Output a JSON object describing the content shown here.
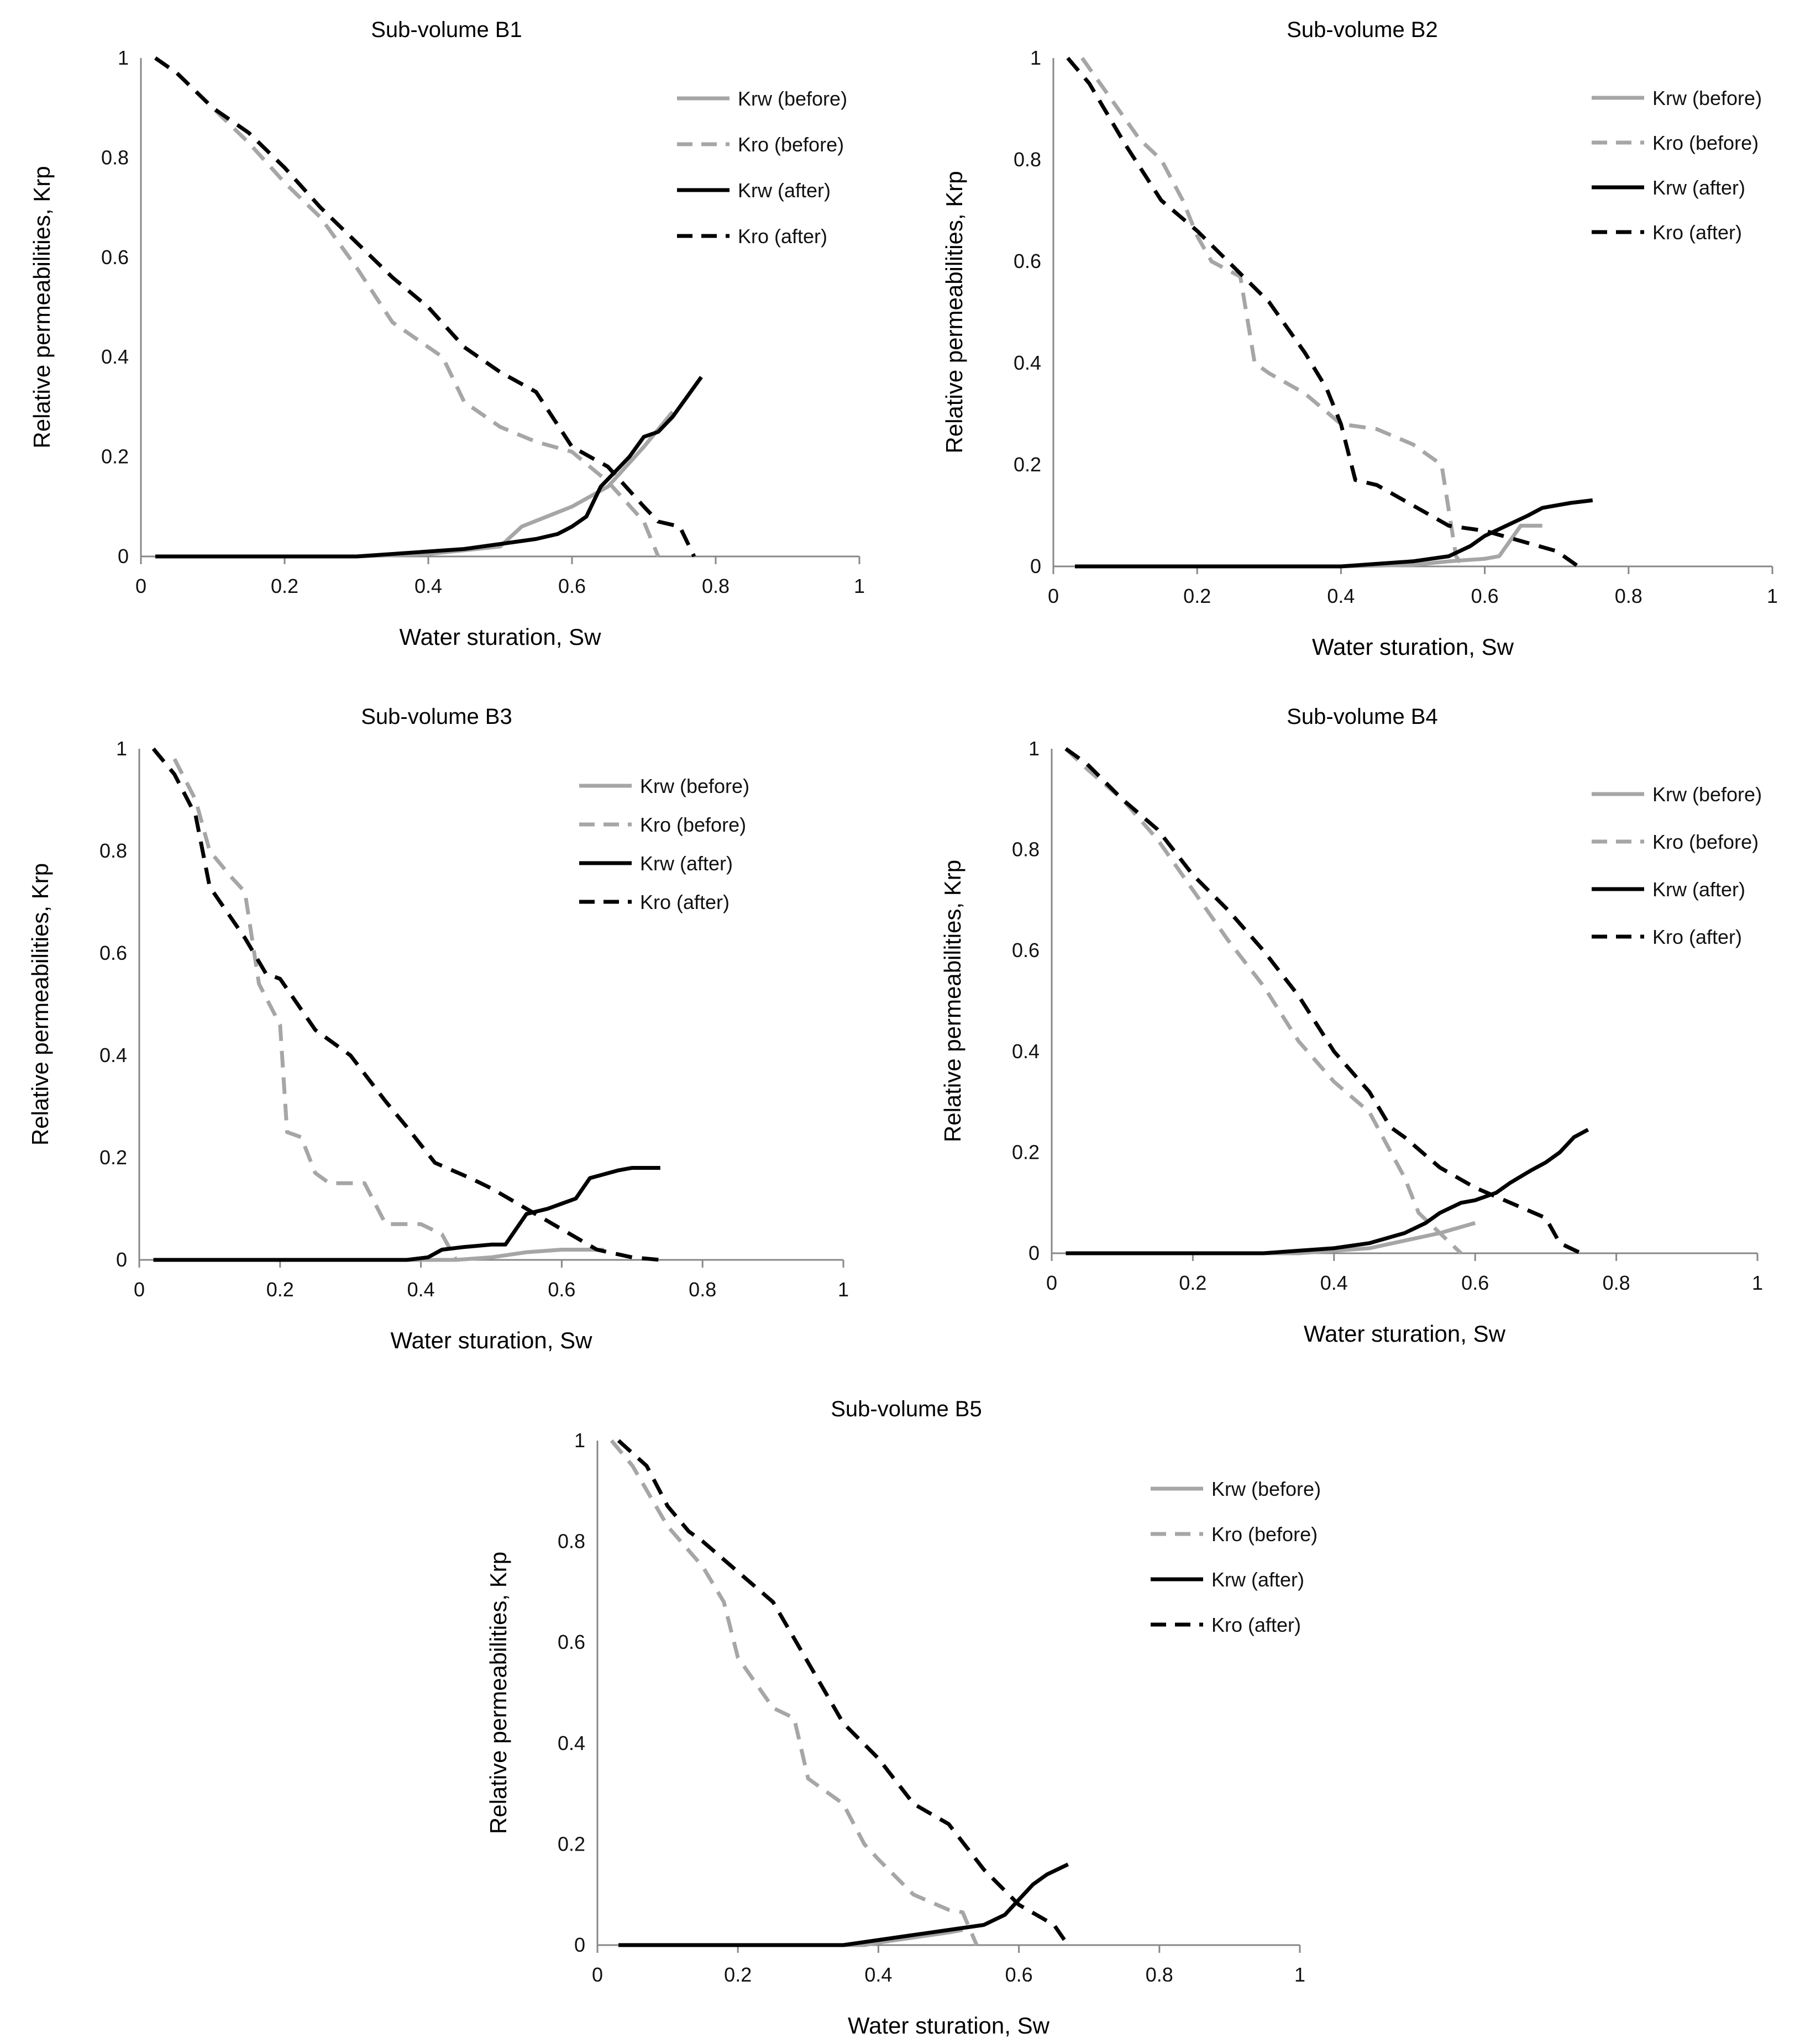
{
  "figure": {
    "series_styles": {
      "Krw (before)": {
        "color": "#a6a6a6",
        "dash": "solid"
      },
      "Kro (before)": {
        "color": "#a6a6a6",
        "dash": "dashed"
      },
      "Krw (after)": {
        "color": "#000000",
        "dash": "solid"
      },
      "Kro (after)": {
        "color": "#000000",
        "dash": "dashed"
      }
    }
  },
  "chart_data": [
    {
      "type": "line",
      "title": "Sub-volume B1",
      "xlabel": "Water sturation, Sw",
      "ylabel": "Relative permeabilities, Krp",
      "xlim": [
        0,
        1
      ],
      "ylim": [
        0,
        1
      ],
      "xticks": [
        "0",
        "0.2",
        "0.4",
        "0.6",
        "0.8",
        "1"
      ],
      "yticks": [
        "0",
        "0.2",
        "0.4",
        "0.6",
        "0.8",
        "1"
      ],
      "grid": false,
      "legend": "top-right",
      "series": [
        {
          "name": "Krw (before)",
          "x": [
            0.02,
            0.3,
            0.4,
            0.5,
            0.53,
            0.6,
            0.65,
            0.7,
            0.74
          ],
          "y": [
            0,
            0,
            0.005,
            0.02,
            0.06,
            0.1,
            0.14,
            0.22,
            0.29
          ]
        },
        {
          "name": "Kro (before)",
          "x": [
            0.02,
            0.05,
            0.1,
            0.15,
            0.2,
            0.25,
            0.3,
            0.35,
            0.4,
            0.42,
            0.45,
            0.5,
            0.55,
            0.6,
            0.65,
            0.7,
            0.72
          ],
          "y": [
            1,
            0.97,
            0.9,
            0.83,
            0.75,
            0.68,
            0.58,
            0.47,
            0.42,
            0.4,
            0.31,
            0.26,
            0.23,
            0.21,
            0.15,
            0.07,
            0
          ]
        },
        {
          "name": "Krw (after)",
          "x": [
            0.02,
            0.3,
            0.4,
            0.45,
            0.5,
            0.55,
            0.58,
            0.6,
            0.62,
            0.64,
            0.66,
            0.68,
            0.7,
            0.72,
            0.74,
            0.76,
            0.78
          ],
          "y": [
            0,
            0,
            0.01,
            0.015,
            0.025,
            0.035,
            0.045,
            0.06,
            0.08,
            0.14,
            0.17,
            0.2,
            0.24,
            0.25,
            0.28,
            0.32,
            0.36
          ]
        },
        {
          "name": "Kro (after)",
          "x": [
            0.02,
            0.05,
            0.1,
            0.15,
            0.2,
            0.25,
            0.3,
            0.35,
            0.4,
            0.45,
            0.5,
            0.55,
            0.6,
            0.65,
            0.7,
            0.72,
            0.75,
            0.77
          ],
          "y": [
            1,
            0.97,
            0.9,
            0.85,
            0.78,
            0.7,
            0.63,
            0.56,
            0.5,
            0.42,
            0.37,
            0.33,
            0.22,
            0.18,
            0.1,
            0.07,
            0.06,
            0
          ]
        }
      ]
    },
    {
      "type": "line",
      "title": "Sub-volume B2",
      "xlabel": "Water sturation, Sw",
      "ylabel": "Relative permeabilities, Krp",
      "xlim": [
        0,
        1
      ],
      "ylim": [
        0,
        1
      ],
      "xticks": [
        "0",
        "0.2",
        "0.4",
        "0.6",
        "0.8",
        "1"
      ],
      "yticks": [
        "0",
        "0.2",
        "0.4",
        "0.6",
        "0.8",
        "1"
      ],
      "grid": false,
      "legend": "top-right",
      "series": [
        {
          "name": "Krw (before)",
          "x": [
            0.03,
            0.4,
            0.5,
            0.55,
            0.6,
            0.62,
            0.65,
            0.68
          ],
          "y": [
            0,
            0,
            0.003,
            0.01,
            0.015,
            0.02,
            0.08,
            0.08
          ]
        },
        {
          "name": "Kro (before)",
          "x": [
            0.04,
            0.08,
            0.12,
            0.15,
            0.18,
            0.2,
            0.22,
            0.26,
            0.28,
            0.3,
            0.35,
            0.4,
            0.45,
            0.5,
            0.54,
            0.56,
            0.57
          ],
          "y": [
            1,
            0.92,
            0.84,
            0.8,
            0.72,
            0.65,
            0.6,
            0.57,
            0.4,
            0.38,
            0.34,
            0.28,
            0.27,
            0.24,
            0.2,
            0.02,
            0
          ]
        },
        {
          "name": "Krw (after)",
          "x": [
            0.03,
            0.4,
            0.45,
            0.5,
            0.55,
            0.58,
            0.6,
            0.63,
            0.66,
            0.68,
            0.7,
            0.72,
            0.75
          ],
          "y": [
            0,
            0,
            0.005,
            0.01,
            0.02,
            0.04,
            0.06,
            0.08,
            0.1,
            0.115,
            0.12,
            0.125,
            0.13
          ]
        },
        {
          "name": "Kro (after)",
          "x": [
            0.02,
            0.05,
            0.1,
            0.15,
            0.2,
            0.25,
            0.3,
            0.35,
            0.38,
            0.4,
            0.42,
            0.45,
            0.5,
            0.55,
            0.6,
            0.65,
            0.7,
            0.73
          ],
          "y": [
            1,
            0.95,
            0.83,
            0.72,
            0.66,
            0.59,
            0.52,
            0.42,
            0.35,
            0.28,
            0.17,
            0.16,
            0.12,
            0.08,
            0.07,
            0.05,
            0.03,
            0
          ]
        }
      ]
    },
    {
      "type": "line",
      "title": "Sub-volume B3",
      "xlabel": "Water sturation, Sw",
      "ylabel": "Relative permeabilities, Krp",
      "xlim": [
        0,
        1
      ],
      "ylim": [
        0,
        1
      ],
      "xticks": [
        "0",
        "0.2",
        "0.4",
        "0.6",
        "0.8",
        "1"
      ],
      "yticks": [
        "0",
        "0.2",
        "0.4",
        "0.6",
        "0.8",
        "1"
      ],
      "grid": false,
      "legend": "top-right",
      "series": [
        {
          "name": "Krw (before)",
          "x": [
            0.02,
            0.45,
            0.5,
            0.55,
            0.6,
            0.65,
            0.66
          ],
          "y": [
            0,
            0,
            0.005,
            0.015,
            0.02,
            0.02,
            0.02
          ]
        },
        {
          "name": "Kro (before)",
          "x": [
            0.05,
            0.08,
            0.1,
            0.13,
            0.15,
            0.17,
            0.2,
            0.21,
            0.23,
            0.25,
            0.27,
            0.3,
            0.32,
            0.35,
            0.4,
            0.43,
            0.45
          ],
          "y": [
            0.98,
            0.9,
            0.8,
            0.75,
            0.72,
            0.54,
            0.46,
            0.25,
            0.24,
            0.17,
            0.15,
            0.15,
            0.15,
            0.07,
            0.07,
            0.05,
            0
          ]
        },
        {
          "name": "Krw (after)",
          "x": [
            0.02,
            0.38,
            0.41,
            0.43,
            0.46,
            0.5,
            0.52,
            0.55,
            0.58,
            0.62,
            0.64,
            0.68,
            0.7,
            0.74
          ],
          "y": [
            0,
            0,
            0.005,
            0.02,
            0.025,
            0.03,
            0.03,
            0.09,
            0.1,
            0.12,
            0.16,
            0.175,
            0.18,
            0.18
          ]
        },
        {
          "name": "Kro (after)",
          "x": [
            0.02,
            0.05,
            0.08,
            0.1,
            0.15,
            0.18,
            0.2,
            0.25,
            0.3,
            0.35,
            0.38,
            0.42,
            0.47,
            0.5,
            0.55,
            0.6,
            0.65,
            0.7,
            0.74
          ],
          "y": [
            1,
            0.95,
            0.87,
            0.73,
            0.63,
            0.56,
            0.55,
            0.45,
            0.4,
            0.31,
            0.26,
            0.19,
            0.16,
            0.14,
            0.1,
            0.06,
            0.02,
            0.005,
            0
          ]
        }
      ]
    },
    {
      "type": "line",
      "title": "Sub-volume B4",
      "xlabel": "Water sturation, Sw",
      "ylabel": "Relative permeabilities, Krp",
      "xlim": [
        0,
        1
      ],
      "ylim": [
        0,
        1
      ],
      "xticks": [
        "0",
        "0.2",
        "0.4",
        "0.6",
        "0.8",
        "1"
      ],
      "yticks": [
        "0",
        "0.2",
        "0.4",
        "0.6",
        "0.8",
        "1"
      ],
      "grid": false,
      "legend": "top-right",
      "series": [
        {
          "name": "Krw (before)",
          "x": [
            0.02,
            0.35,
            0.4,
            0.45,
            0.5,
            0.55,
            0.6
          ],
          "y": [
            0,
            0,
            0.005,
            0.01,
            0.025,
            0.04,
            0.06
          ]
        },
        {
          "name": "Kro (before)",
          "x": [
            0.02,
            0.05,
            0.1,
            0.15,
            0.2,
            0.25,
            0.3,
            0.35,
            0.4,
            0.45,
            0.5,
            0.52,
            0.55,
            0.58
          ],
          "y": [
            1,
            0.96,
            0.9,
            0.82,
            0.72,
            0.62,
            0.53,
            0.42,
            0.34,
            0.28,
            0.15,
            0.08,
            0.04,
            0
          ]
        },
        {
          "name": "Krw (after)",
          "x": [
            0.02,
            0.3,
            0.35,
            0.4,
            0.45,
            0.5,
            0.53,
            0.55,
            0.58,
            0.6,
            0.63,
            0.65,
            0.68,
            0.7,
            0.72,
            0.74,
            0.76
          ],
          "y": [
            0,
            0,
            0.005,
            0.01,
            0.02,
            0.04,
            0.06,
            0.08,
            0.1,
            0.105,
            0.12,
            0.14,
            0.165,
            0.18,
            0.2,
            0.23,
            0.245
          ]
        },
        {
          "name": "Kro (after)",
          "x": [
            0.02,
            0.05,
            0.1,
            0.15,
            0.2,
            0.25,
            0.3,
            0.35,
            0.4,
            0.45,
            0.48,
            0.5,
            0.55,
            0.6,
            0.65,
            0.7,
            0.72,
            0.75
          ],
          "y": [
            1,
            0.97,
            0.9,
            0.84,
            0.75,
            0.68,
            0.6,
            0.51,
            0.4,
            0.32,
            0.25,
            0.23,
            0.17,
            0.13,
            0.1,
            0.07,
            0.02,
            0
          ]
        }
      ]
    },
    {
      "type": "line",
      "title": "Sub-volume B5",
      "xlabel": "Water sturation, Sw",
      "ylabel": "Relative permeabilities, Krp",
      "xlim": [
        0,
        1
      ],
      "ylim": [
        0,
        1
      ],
      "xticks": [
        "0",
        "0.2",
        "0.4",
        "0.6",
        "0.8",
        "1"
      ],
      "yticks": [
        "0",
        "0.2",
        "0.4",
        "0.6",
        "0.8",
        "1"
      ],
      "grid": false,
      "legend": "top-right",
      "series": [
        {
          "name": "Krw (before)",
          "x": [
            0.03,
            0.38,
            0.4,
            0.45,
            0.5,
            0.52
          ],
          "y": [
            0,
            0,
            0.005,
            0.015,
            0.025,
            0.03
          ]
        },
        {
          "name": "Kro (before)",
          "x": [
            0.02,
            0.05,
            0.1,
            0.15,
            0.18,
            0.2,
            0.25,
            0.28,
            0.3,
            0.35,
            0.38,
            0.4,
            0.45,
            0.5,
            0.52,
            0.54
          ],
          "y": [
            1,
            0.95,
            0.83,
            0.75,
            0.68,
            0.57,
            0.47,
            0.45,
            0.33,
            0.28,
            0.2,
            0.17,
            0.1,
            0.07,
            0.065,
            0
          ]
        },
        {
          "name": "Krw (after)",
          "x": [
            0.03,
            0.35,
            0.4,
            0.45,
            0.5,
            0.55,
            0.58,
            0.6,
            0.62,
            0.64,
            0.67
          ],
          "y": [
            0,
            0,
            0.01,
            0.02,
            0.03,
            0.04,
            0.06,
            0.09,
            0.12,
            0.14,
            0.16
          ]
        },
        {
          "name": "Kro (after)",
          "x": [
            0.03,
            0.07,
            0.1,
            0.13,
            0.15,
            0.2,
            0.25,
            0.3,
            0.35,
            0.4,
            0.45,
            0.5,
            0.55,
            0.6,
            0.65,
            0.67
          ],
          "y": [
            1,
            0.95,
            0.87,
            0.82,
            0.8,
            0.74,
            0.68,
            0.56,
            0.44,
            0.37,
            0.28,
            0.24,
            0.15,
            0.08,
            0.04,
            0
          ]
        }
      ]
    }
  ]
}
